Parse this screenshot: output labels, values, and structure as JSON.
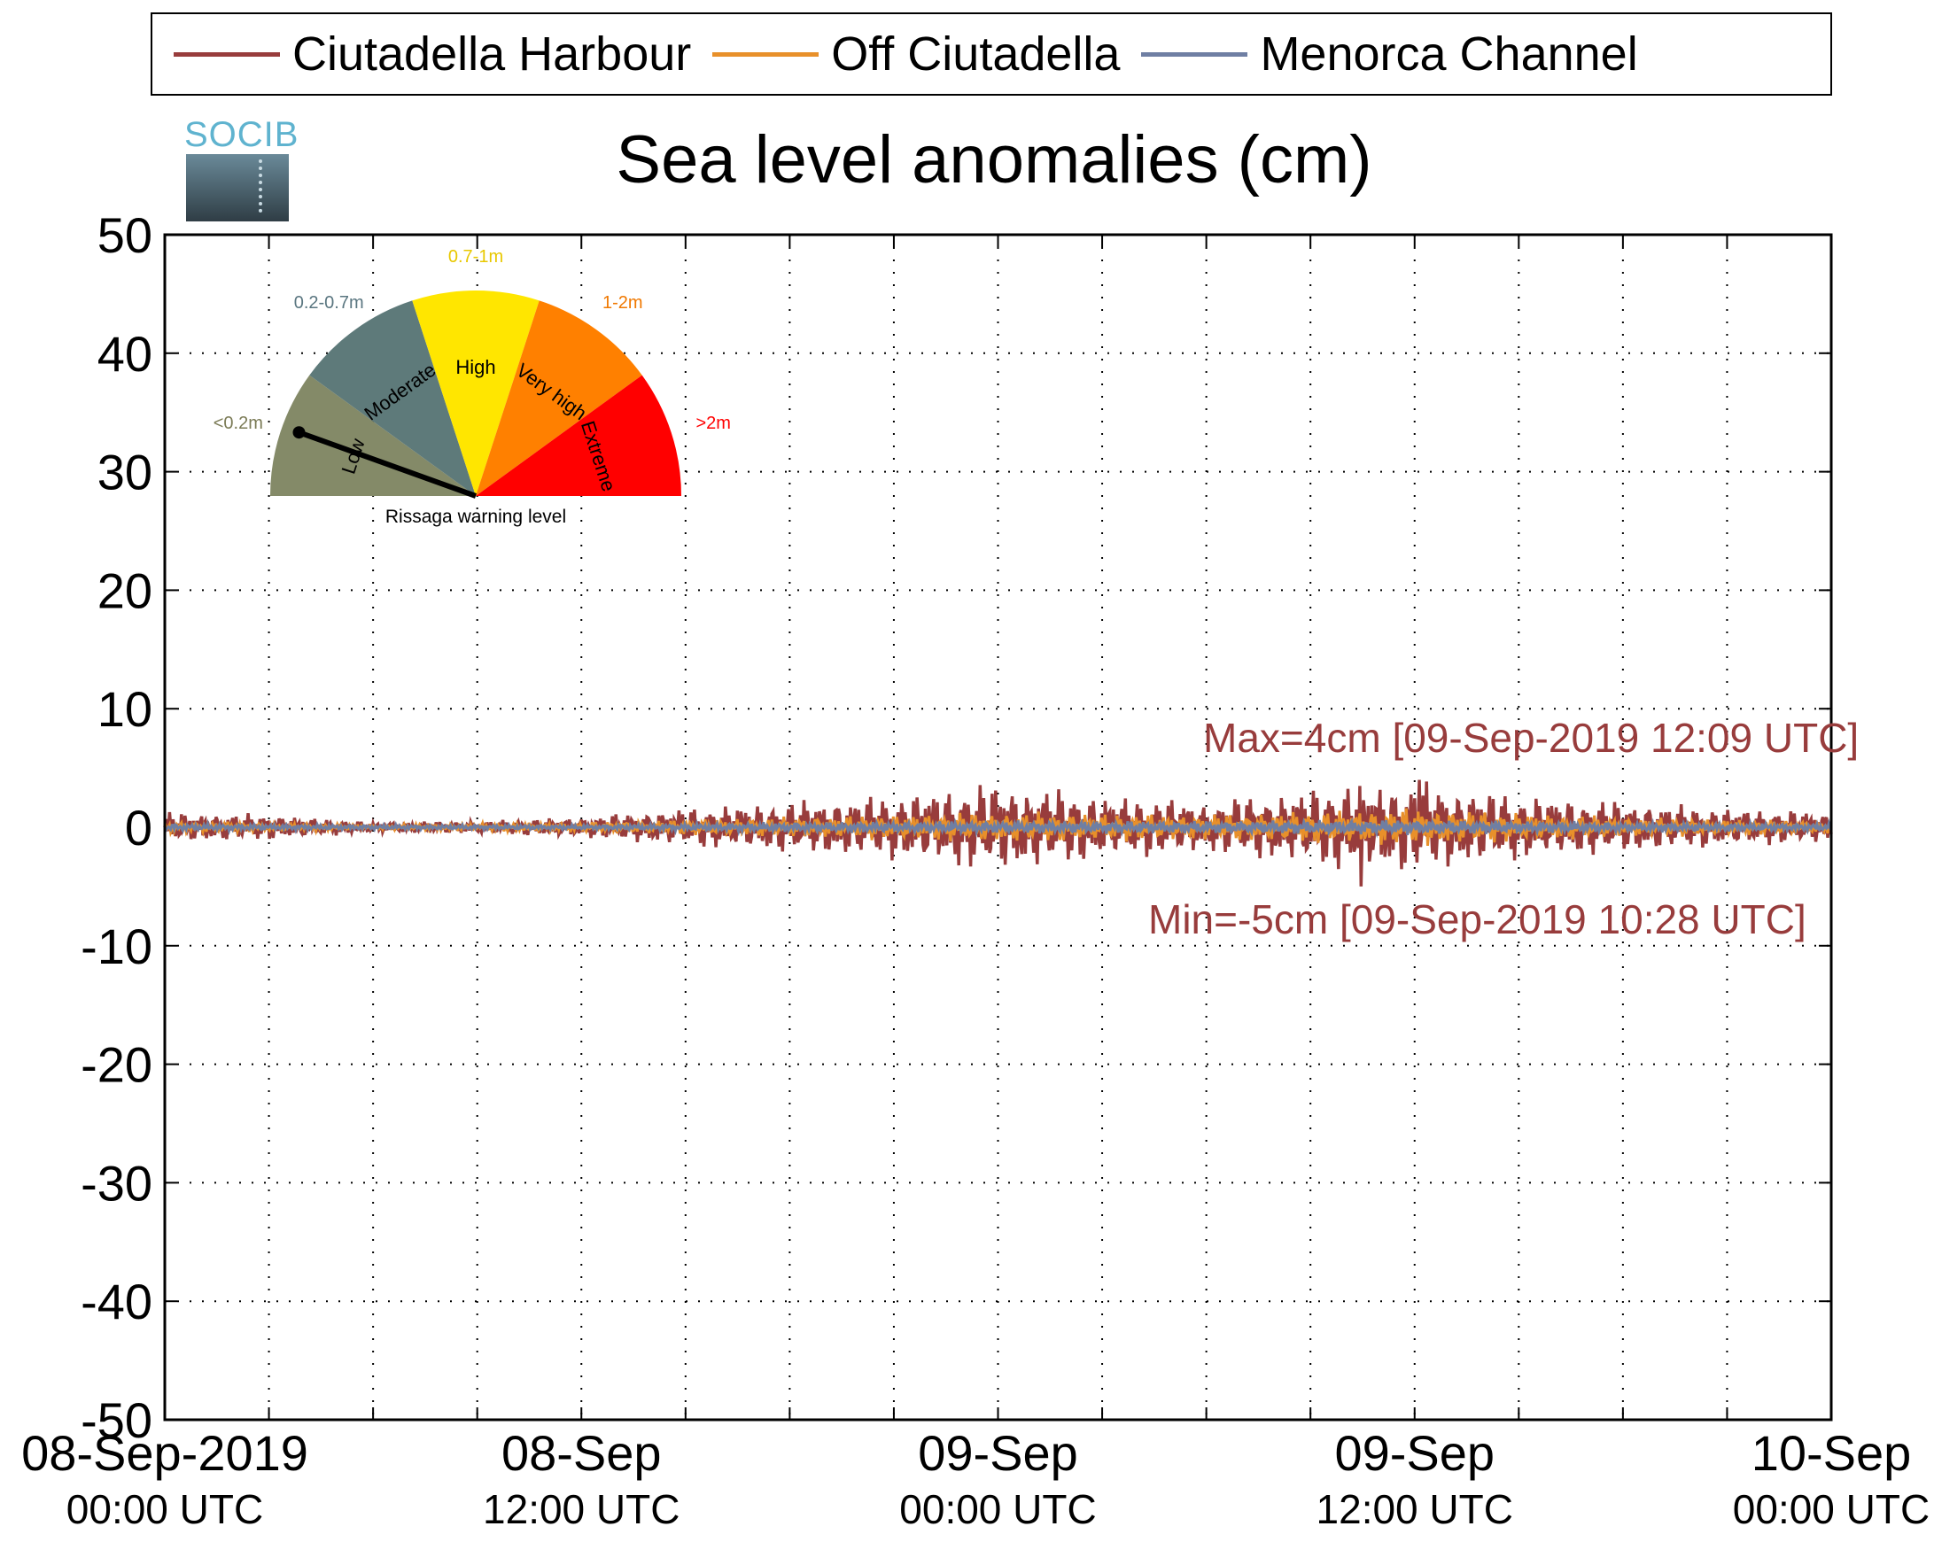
{
  "chart_data": {
    "type": "line",
    "title": "Sea level anomalies (cm)",
    "xlabel": "",
    "ylabel": "",
    "ylim": [
      -50,
      50
    ],
    "y_ticks": [
      50,
      40,
      30,
      20,
      10,
      0,
      -10,
      -20,
      -30,
      -40,
      -50
    ],
    "x_range": [
      "2019-09-08 00:00 UTC",
      "2019-09-10 00:00 UTC"
    ],
    "x_tick_labels": [
      {
        "date": "08-Sep-2019",
        "time": "00:00 UTC"
      },
      {
        "date": "08-Sep",
        "time": "12:00 UTC"
      },
      {
        "date": "09-Sep",
        "time": "00:00 UTC"
      },
      {
        "date": "09-Sep",
        "time": "12:00 UTC"
      },
      {
        "date": "10-Sep",
        "time": "00:00 UTC"
      }
    ],
    "grid": true,
    "legend": "top",
    "series": [
      {
        "name": "Ciutadella Harbour",
        "color": "#983c3c",
        "x": [
          "2019-09-08 00:00",
          "2019-09-08 03:00",
          "2019-09-08 06:00",
          "2019-09-08 09:00",
          "2019-09-08 12:00",
          "2019-09-08 15:00",
          "2019-09-08 18:00",
          "2019-09-08 21:00",
          "2019-09-09 00:00",
          "2019-09-09 03:00",
          "2019-09-09 06:00",
          "2019-09-09 09:00",
          "2019-09-09 10:28",
          "2019-09-09 12:09",
          "2019-09-09 15:00",
          "2019-09-09 18:00",
          "2019-09-09 21:00",
          "2019-09-10 00:00"
        ],
        "envelope": [
          1.2,
          1.0,
          0.4,
          0.5,
          0.8,
          1.5,
          2.0,
          2.5,
          3.5,
          2.5,
          2.0,
          3.0,
          3.5,
          3.5,
          2.5,
          2.0,
          1.5,
          1.2
        ],
        "max": {
          "value": 4,
          "time": "2019-09-09 12:09"
        },
        "min": {
          "value": -5,
          "time": "2019-09-09 10:28"
        }
      },
      {
        "name": "Off Ciutadella",
        "color": "#e8902a",
        "x": [
          "2019-09-08 00:00",
          "2019-09-08 06:00",
          "2019-09-08 12:00",
          "2019-09-08 18:00",
          "2019-09-09 00:00",
          "2019-09-09 06:00",
          "2019-09-09 12:00",
          "2019-09-09 18:00",
          "2019-09-10 00:00"
        ],
        "envelope": [
          0.5,
          0.2,
          0.4,
          0.8,
          1.2,
          1.0,
          1.5,
          0.8,
          0.5
        ]
      },
      {
        "name": "Menorca Channel",
        "color": "#6f7fa3",
        "x": [
          "2019-09-08 00:00",
          "2019-09-08 06:00",
          "2019-09-08 12:00",
          "2019-09-08 18:00",
          "2019-09-09 00:00",
          "2019-09-09 06:00",
          "2019-09-09 12:00",
          "2019-09-09 18:00",
          "2019-09-10 00:00"
        ],
        "envelope": [
          0.3,
          0.2,
          0.2,
          0.4,
          0.5,
          0.5,
          0.6,
          0.4,
          0.3
        ]
      }
    ],
    "annotations": {
      "max_text": "Max=4cm [09-Sep-2019 12:09 UTC]",
      "min_text": "Min=-5cm [09-Sep-2019 10:28 UTC]",
      "color": "#983c3c"
    }
  },
  "gauge": {
    "caption": "Rissaga warning level",
    "level": "Low",
    "needle_fraction": 0.11,
    "sectors": [
      {
        "name": "Low",
        "range": "<0.2m",
        "color": "#848a68",
        "label_color": "#7a7a55"
      },
      {
        "name": "Moderate",
        "range": "0.2-0.7m",
        "color": "#5e7a7a",
        "label_color": "#5a7680"
      },
      {
        "name": "High",
        "range": "0.7-1m",
        "color": "#ffe600",
        "label_color": "#e8c800"
      },
      {
        "name": "Very high",
        "range": "1-2m",
        "color": "#ff8000",
        "label_color": "#f07800"
      },
      {
        "name": "Extreme",
        "range": ">2m",
        "color": "#ff0000",
        "label_color": "#ff0000"
      }
    ]
  },
  "logo": {
    "text": "SOCIB"
  }
}
